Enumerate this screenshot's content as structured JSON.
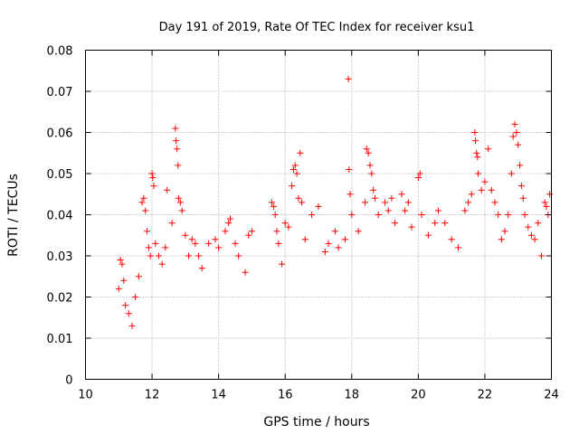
{
  "chart_data": {
    "type": "scatter",
    "title": "Day 191 of 2019, Rate Of TEC Index for receiver ksu1",
    "xlabel": "GPS time / hours",
    "ylabel": "ROTI / TECUs",
    "xlim": [
      10,
      24
    ],
    "ylim": [
      0,
      0.08
    ],
    "xticks": [
      10,
      12,
      14,
      16,
      18,
      20,
      22,
      24
    ],
    "yticks": [
      0,
      0.01,
      0.02,
      0.03,
      0.04,
      0.05,
      0.06,
      0.07,
      0.08
    ],
    "xtick_labels": [
      "10",
      "12",
      "14",
      "16",
      "18",
      "20",
      "22",
      "24"
    ],
    "ytick_labels": [
      "0",
      "0.01",
      "0.02",
      "0.03",
      "0.04",
      "0.05",
      "0.06",
      "0.07",
      "0.08"
    ],
    "grid": true,
    "marker": "+",
    "color": "#ff0000",
    "series": [
      {
        "name": "ROTI",
        "points": [
          [
            11.0,
            0.022
          ],
          [
            11.05,
            0.029
          ],
          [
            11.1,
            0.028
          ],
          [
            11.15,
            0.024
          ],
          [
            11.2,
            0.018
          ],
          [
            11.3,
            0.016
          ],
          [
            11.4,
            0.013
          ],
          [
            11.5,
            0.02
          ],
          [
            11.6,
            0.025
          ],
          [
            11.7,
            0.043
          ],
          [
            11.75,
            0.044
          ],
          [
            11.8,
            0.041
          ],
          [
            11.85,
            0.036
          ],
          [
            11.9,
            0.032
          ],
          [
            11.95,
            0.03
          ],
          [
            12.0,
            0.05
          ],
          [
            12.02,
            0.049
          ],
          [
            12.05,
            0.047
          ],
          [
            12.1,
            0.033
          ],
          [
            12.2,
            0.03
          ],
          [
            12.3,
            0.028
          ],
          [
            12.4,
            0.032
          ],
          [
            12.45,
            0.046
          ],
          [
            12.6,
            0.038
          ],
          [
            12.7,
            0.061
          ],
          [
            12.72,
            0.058
          ],
          [
            12.75,
            0.056
          ],
          [
            12.78,
            0.052
          ],
          [
            12.8,
            0.044
          ],
          [
            12.85,
            0.043
          ],
          [
            12.9,
            0.041
          ],
          [
            13.0,
            0.035
          ],
          [
            13.1,
            0.03
          ],
          [
            13.2,
            0.034
          ],
          [
            13.3,
            0.033
          ],
          [
            13.4,
            0.03
          ],
          [
            13.5,
            0.027
          ],
          [
            13.7,
            0.033
          ],
          [
            13.9,
            0.034
          ],
          [
            14.0,
            0.032
          ],
          [
            14.2,
            0.036
          ],
          [
            14.3,
            0.038
          ],
          [
            14.35,
            0.039
          ],
          [
            14.5,
            0.033
          ],
          [
            14.6,
            0.03
          ],
          [
            14.8,
            0.026
          ],
          [
            14.9,
            0.035
          ],
          [
            15.0,
            0.036
          ],
          [
            15.6,
            0.043
          ],
          [
            15.65,
            0.042
          ],
          [
            15.7,
            0.04
          ],
          [
            15.75,
            0.036
          ],
          [
            15.8,
            0.033
          ],
          [
            15.9,
            0.028
          ],
          [
            16.0,
            0.038
          ],
          [
            16.1,
            0.037
          ],
          [
            16.2,
            0.047
          ],
          [
            16.25,
            0.051
          ],
          [
            16.3,
            0.052
          ],
          [
            16.35,
            0.05
          ],
          [
            16.4,
            0.044
          ],
          [
            16.45,
            0.055
          ],
          [
            16.5,
            0.043
          ],
          [
            16.6,
            0.034
          ],
          [
            16.8,
            0.04
          ],
          [
            17.0,
            0.042
          ],
          [
            17.2,
            0.031
          ],
          [
            17.3,
            0.033
          ],
          [
            17.5,
            0.036
          ],
          [
            17.6,
            0.032
          ],
          [
            17.8,
            0.034
          ],
          [
            17.9,
            0.073
          ],
          [
            17.92,
            0.051
          ],
          [
            17.95,
            0.045
          ],
          [
            18.0,
            0.04
          ],
          [
            18.2,
            0.036
          ],
          [
            18.4,
            0.043
          ],
          [
            18.45,
            0.056
          ],
          [
            18.5,
            0.055
          ],
          [
            18.55,
            0.052
          ],
          [
            18.6,
            0.05
          ],
          [
            18.65,
            0.046
          ],
          [
            18.7,
            0.044
          ],
          [
            18.8,
            0.04
          ],
          [
            19.0,
            0.043
          ],
          [
            19.1,
            0.041
          ],
          [
            19.2,
            0.044
          ],
          [
            19.3,
            0.038
          ],
          [
            19.5,
            0.045
          ],
          [
            19.6,
            0.041
          ],
          [
            19.7,
            0.043
          ],
          [
            19.8,
            0.037
          ],
          [
            20.0,
            0.049
          ],
          [
            20.05,
            0.05
          ],
          [
            20.1,
            0.04
          ],
          [
            20.3,
            0.035
          ],
          [
            20.5,
            0.038
          ],
          [
            20.6,
            0.041
          ],
          [
            20.8,
            0.038
          ],
          [
            21.0,
            0.034
          ],
          [
            21.2,
            0.032
          ],
          [
            21.4,
            0.041
          ],
          [
            21.5,
            0.043
          ],
          [
            21.6,
            0.045
          ],
          [
            21.7,
            0.06
          ],
          [
            21.72,
            0.058
          ],
          [
            21.75,
            0.055
          ],
          [
            21.78,
            0.054
          ],
          [
            21.8,
            0.05
          ],
          [
            21.9,
            0.046
          ],
          [
            22.0,
            0.048
          ],
          [
            22.1,
            0.056
          ],
          [
            22.2,
            0.046
          ],
          [
            22.3,
            0.043
          ],
          [
            22.4,
            0.04
          ],
          [
            22.5,
            0.034
          ],
          [
            22.6,
            0.036
          ],
          [
            22.7,
            0.04
          ],
          [
            22.8,
            0.05
          ],
          [
            22.85,
            0.059
          ],
          [
            22.9,
            0.062
          ],
          [
            22.95,
            0.06
          ],
          [
            23.0,
            0.057
          ],
          [
            23.05,
            0.052
          ],
          [
            23.1,
            0.047
          ],
          [
            23.15,
            0.044
          ],
          [
            23.2,
            0.04
          ],
          [
            23.3,
            0.037
          ],
          [
            23.4,
            0.035
          ],
          [
            23.5,
            0.034
          ],
          [
            23.6,
            0.038
          ],
          [
            23.7,
            0.03
          ],
          [
            23.8,
            0.043
          ],
          [
            23.85,
            0.042
          ],
          [
            23.9,
            0.04
          ],
          [
            23.95,
            0.045
          ]
        ]
      }
    ]
  }
}
